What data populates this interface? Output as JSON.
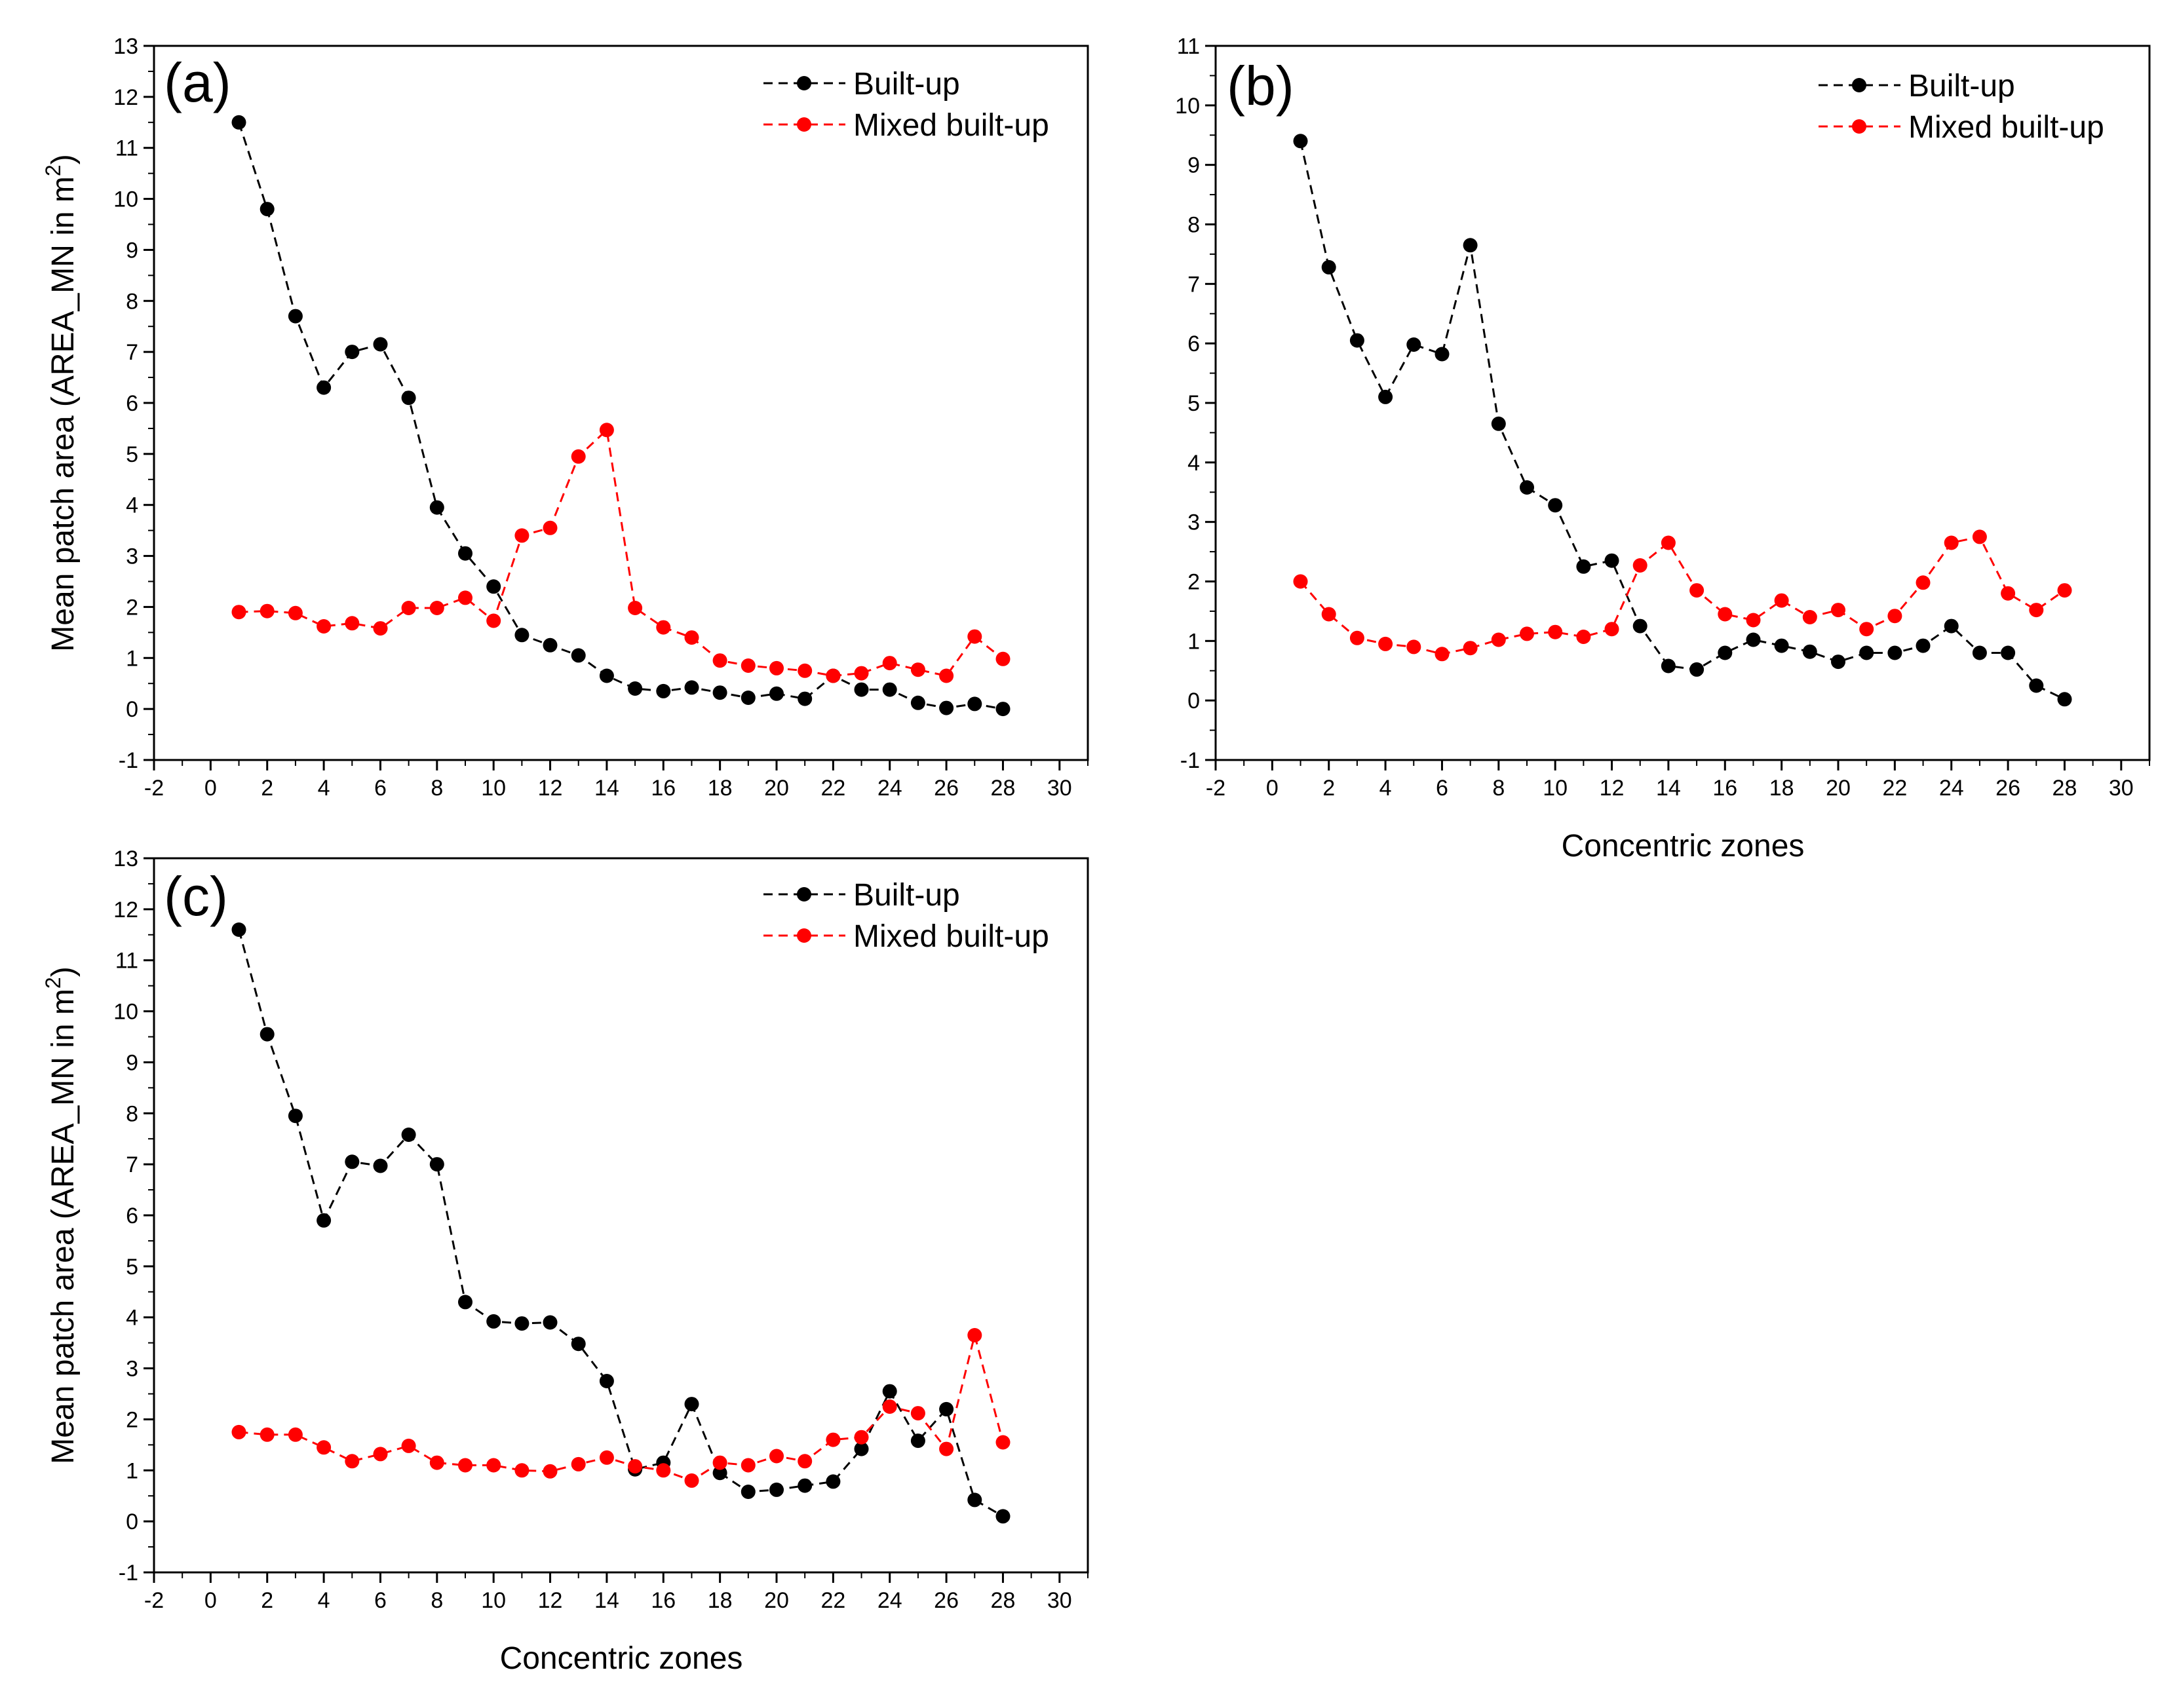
{
  "chart_data": [
    {
      "type": "line",
      "panel_label": "(a)",
      "xlabel": "",
      "ylabel": "Mean patch area (AREA_MN in m",
      "ylabel_sup": "2",
      "ylabel_end": ")",
      "xlim": [
        -2,
        31
      ],
      "ylim": [
        -1,
        13
      ],
      "x_ticks": [
        "-2",
        "0",
        "2",
        "4",
        "6",
        "8",
        "10",
        "12",
        "14",
        "16",
        "18",
        "20",
        "22",
        "24",
        "26",
        "28",
        "30"
      ],
      "y_ticks": [
        "-1",
        "0",
        "1",
        "2",
        "3",
        "4",
        "5",
        "6",
        "7",
        "8",
        "9",
        "10",
        "11",
        "12",
        "13"
      ],
      "legend_position": "top-right",
      "x": [
        1,
        2,
        3,
        4,
        5,
        6,
        7,
        8,
        9,
        10,
        11,
        12,
        13,
        14,
        15,
        16,
        17,
        18,
        19,
        20,
        21,
        22,
        23,
        24,
        25,
        26,
        27,
        28
      ],
      "series": [
        {
          "name": "Built-up",
          "color": "#000000",
          "values": [
            11.5,
            9.8,
            7.7,
            6.3,
            7.0,
            7.15,
            6.1,
            3.95,
            3.05,
            2.4,
            1.45,
            1.25,
            1.05,
            0.65,
            0.4,
            0.35,
            0.42,
            0.32,
            0.22,
            0.3,
            0.2,
            0.65,
            0.38,
            0.38,
            0.12,
            0.02,
            0.1,
            0.0
          ]
        },
        {
          "name": "Mixed built-up",
          "color": "#ff0000",
          "values": [
            1.9,
            1.92,
            1.88,
            1.62,
            1.68,
            1.58,
            1.98,
            1.98,
            2.18,
            1.73,
            3.4,
            3.55,
            4.95,
            5.47,
            1.98,
            1.6,
            1.4,
            0.95,
            0.85,
            0.8,
            0.75,
            0.65,
            0.7,
            0.9,
            0.77,
            0.65,
            1.42,
            0.98
          ]
        }
      ]
    },
    {
      "type": "line",
      "panel_label": "(b)",
      "xlabel": "Concentric zones",
      "ylabel": "",
      "xlim": [
        -2,
        31
      ],
      "ylim": [
        -1,
        11
      ],
      "x_ticks": [
        "-2",
        "0",
        "2",
        "4",
        "6",
        "8",
        "10",
        "12",
        "14",
        "16",
        "18",
        "20",
        "22",
        "24",
        "26",
        "28",
        "30"
      ],
      "y_ticks": [
        "-1",
        "0",
        "1",
        "2",
        "3",
        "4",
        "5",
        "6",
        "7",
        "8",
        "9",
        "10",
        "11"
      ],
      "legend_position": "top-right",
      "x": [
        1,
        2,
        3,
        4,
        5,
        6,
        7,
        8,
        9,
        10,
        11,
        12,
        13,
        14,
        15,
        16,
        17,
        18,
        19,
        20,
        21,
        22,
        23,
        24,
        25,
        26,
        27,
        28
      ],
      "series": [
        {
          "name": "Built-up",
          "color": "#000000",
          "values": [
            9.4,
            7.28,
            6.05,
            5.1,
            5.98,
            5.82,
            7.65,
            4.65,
            3.58,
            3.28,
            2.25,
            2.35,
            1.25,
            0.58,
            0.52,
            0.8,
            1.02,
            0.92,
            0.82,
            0.65,
            0.8,
            0.8,
            0.92,
            1.25,
            0.8,
            0.8,
            0.25,
            0.02
          ]
        },
        {
          "name": "Mixed built-up",
          "color": "#ff0000",
          "values": [
            2.0,
            1.45,
            1.05,
            0.95,
            0.9,
            0.78,
            0.88,
            1.02,
            1.12,
            1.15,
            1.07,
            1.2,
            2.27,
            2.65,
            1.85,
            1.45,
            1.35,
            1.68,
            1.4,
            1.52,
            1.2,
            1.42,
            1.98,
            2.65,
            2.75,
            1.8,
            1.52,
            1.85
          ]
        }
      ]
    },
    {
      "type": "line",
      "panel_label": "(c)",
      "xlabel": "Concentric zones",
      "ylabel": "Mean patch area (AREA_MN in m",
      "ylabel_sup": "2",
      "ylabel_end": ")",
      "xlim": [
        -2,
        31
      ],
      "ylim": [
        -1,
        13
      ],
      "x_ticks": [
        "-2",
        "0",
        "2",
        "4",
        "6",
        "8",
        "10",
        "12",
        "14",
        "16",
        "18",
        "20",
        "22",
        "24",
        "26",
        "28",
        "30"
      ],
      "y_ticks": [
        "-1",
        "0",
        "1",
        "2",
        "3",
        "4",
        "5",
        "6",
        "7",
        "8",
        "9",
        "10",
        "11",
        "12",
        "13"
      ],
      "legend_position": "top-right",
      "x": [
        1,
        2,
        3,
        4,
        5,
        6,
        7,
        8,
        9,
        10,
        11,
        12,
        13,
        14,
        15,
        16,
        17,
        18,
        19,
        20,
        21,
        22,
        23,
        24,
        25,
        26,
        27,
        28
      ],
      "series": [
        {
          "name": "Built-up",
          "color": "#000000",
          "values": [
            11.6,
            9.55,
            7.95,
            5.9,
            7.05,
            6.97,
            7.58,
            7.0,
            4.3,
            3.92,
            3.88,
            3.9,
            3.48,
            2.75,
            1.02,
            1.15,
            2.3,
            0.95,
            0.58,
            0.62,
            0.7,
            0.78,
            1.42,
            2.55,
            1.58,
            2.2,
            0.42,
            0.1
          ]
        },
        {
          "name": "Mixed built-up",
          "color": "#ff0000",
          "values": [
            1.75,
            1.7,
            1.7,
            1.45,
            1.18,
            1.32,
            1.48,
            1.15,
            1.1,
            1.1,
            1.0,
            0.98,
            1.12,
            1.25,
            1.08,
            1.0,
            0.8,
            1.15,
            1.1,
            1.28,
            1.18,
            1.6,
            1.65,
            2.25,
            2.12,
            1.42,
            3.65,
            1.55
          ]
        }
      ]
    }
  ]
}
